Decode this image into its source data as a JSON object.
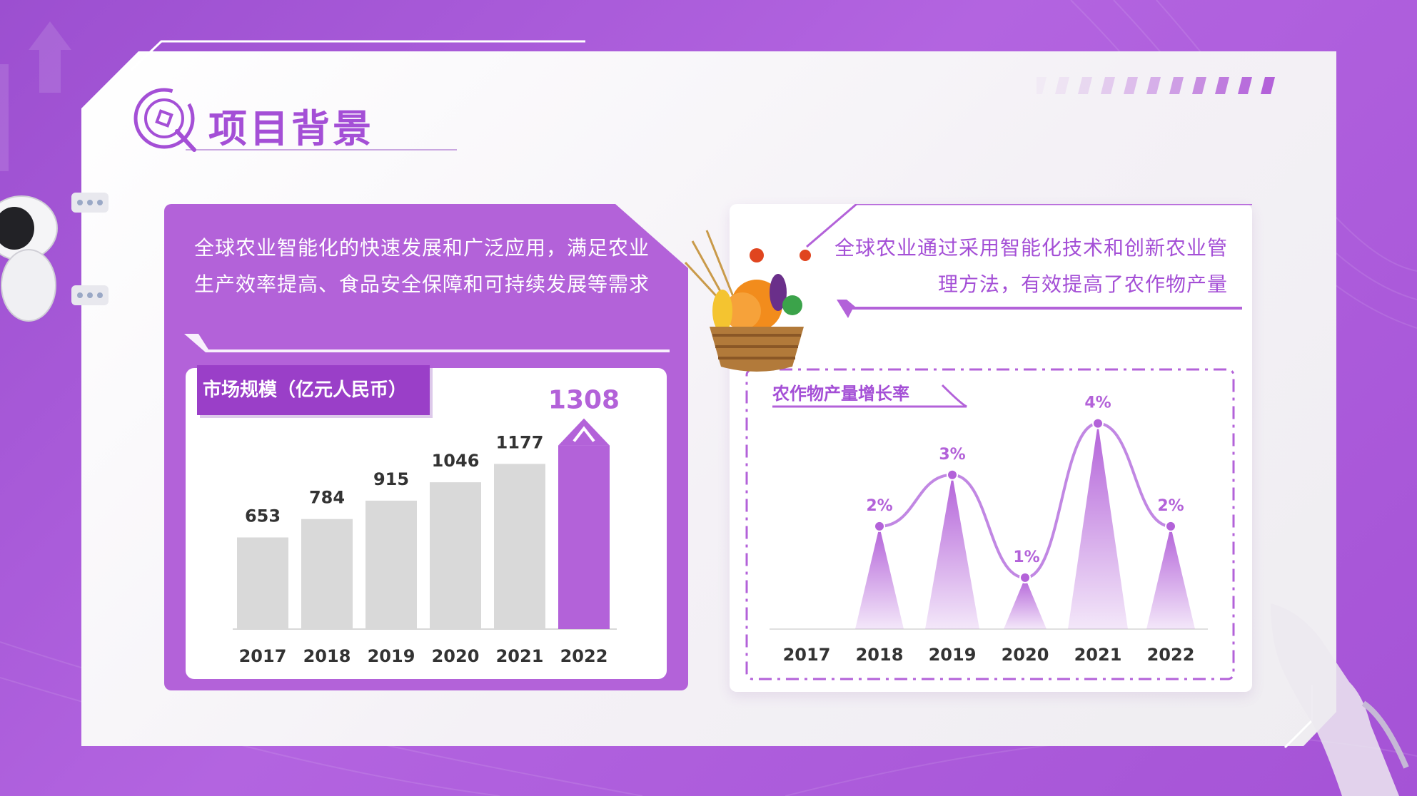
{
  "title": "项目背景",
  "left": {
    "description": "全球农业智能化的快速发展和广泛应用，满足农业生产效率提高、食品安全保障和可持续发展等需求",
    "chart_label": "市场规模（亿元人民币）"
  },
  "right": {
    "description": "全球农业通过采用智能化技术和创新农业管理方法，有效提高了农作物产量",
    "chart_label": "农作物产量增长率"
  },
  "colors": {
    "accent": "#b362d9",
    "accent_dark": "#9a3fc8",
    "bar_gray": "#d9d9d9",
    "text_dark": "#333333"
  },
  "chart_data": [
    {
      "type": "bar",
      "title": "市场规模（亿元人民币）",
      "categories": [
        "2017",
        "2018",
        "2019",
        "2020",
        "2021",
        "2022"
      ],
      "values": [
        653,
        784,
        915,
        1046,
        1177,
        1308
      ],
      "value_labels": [
        "653",
        "784",
        "915",
        "1046",
        "1177",
        "1308"
      ],
      "highlight_index": 5,
      "ylim": [
        0,
        1400
      ]
    },
    {
      "type": "line",
      "title": "农作物产量增长率",
      "categories": [
        "2017",
        "2018",
        "2019",
        "2020",
        "2021",
        "2022"
      ],
      "values": [
        null,
        2,
        3,
        1,
        4,
        2
      ],
      "value_labels": [
        "",
        "2%",
        "3%",
        "1%",
        "4%",
        "2%"
      ],
      "ylim": [
        0,
        4.5
      ]
    }
  ]
}
